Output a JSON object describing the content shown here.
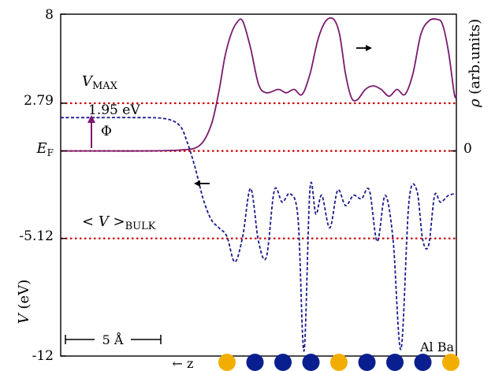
{
  "chart_data": {
    "type": "line",
    "title": "",
    "xlabel": "← z",
    "ylabel": "V (eV)",
    "ylabel_right": "ρ (arb.units)",
    "xlim": [
      0,
      100
    ],
    "ylim": [
      -12,
      8
    ],
    "y_ticks": [
      {
        "value": 8,
        "label": "8"
      },
      {
        "value": 2.79,
        "label": "2.79"
      },
      {
        "value": 0,
        "label": "E_F"
      },
      {
        "value": -5.12,
        "label": "-5.12"
      },
      {
        "value": -12,
        "label": "-12"
      }
    ],
    "y_right_ticks": [
      {
        "value": 0,
        "label": "0"
      }
    ],
    "grid": false,
    "reference_lines": [
      {
        "value": 2.79,
        "label": "V_MAX",
        "color": "#cc0000"
      },
      {
        "value": 0,
        "label": "",
        "color": "#cc0000"
      },
      {
        "value": -5.12,
        "label": "< V >_BULK",
        "color": "#cc0000"
      }
    ],
    "annotations": {
      "barrier_label": "1.95 eV",
      "work_function": "Φ",
      "scale_bar": "5 Å",
      "atom_labels": "Al Ba"
    },
    "series": [
      {
        "color": "#7a1a6e",
        "style": "solid",
        "axis": "right",
        "x": [
          0,
          10,
          20,
          30,
          35,
          38,
          40,
          41.5,
          43,
          44.5,
          46,
          48,
          50,
          52,
          55,
          57,
          59,
          61,
          63,
          65,
          67,
          69,
          70.5,
          72,
          73.5,
          75,
          77,
          79,
          81,
          83,
          85,
          87,
          89,
          91,
          93,
          95,
          96.5,
          98,
          99.5,
          100
        ],
        "y": [
          0,
          0,
          0,
          0.05,
          0.3,
          1.5,
          3.5,
          5.5,
          6.8,
          7.5,
          7.6,
          6.0,
          3.9,
          3.4,
          3.6,
          3.4,
          3.6,
          3.3,
          4.5,
          6.5,
          7.6,
          7.7,
          6.8,
          4.5,
          3.1,
          3.0,
          3.6,
          3.8,
          3.6,
          3.2,
          3.6,
          3.3,
          4.5,
          6.8,
          7.6,
          7.7,
          7.4,
          5.8,
          3.3,
          3.3
        ]
      },
      {
        "color": "#1a1a8c",
        "style": "dashed",
        "axis": "left",
        "x": [
          0,
          4,
          8,
          10,
          18,
          26,
          30,
          32,
          34,
          36,
          38,
          40,
          42,
          44,
          46,
          48,
          50,
          52,
          54,
          56,
          58,
          60,
          61.5,
          63,
          64.5,
          66,
          68,
          70,
          72,
          74,
          76,
          78,
          80,
          82,
          84,
          86,
          88,
          90,
          91.5,
          93,
          94.5,
          96,
          98,
          100
        ],
        "y": [
          1.95,
          1.95,
          1.95,
          1.95,
          1.95,
          1.9,
          1.5,
          0.5,
          -1.0,
          -2.8,
          -4.0,
          -4.5,
          -5.0,
          -6.5,
          -5.0,
          -2.2,
          -5.3,
          -6.2,
          -2.3,
          -3.0,
          -2.5,
          -4.0,
          -11.7,
          -2.2,
          -3.7,
          -2.6,
          -4.5,
          -2.3,
          -3.2,
          -2.6,
          -2.8,
          -2.3,
          -5.3,
          -2.6,
          -5.2,
          -11.6,
          -3.0,
          -2.3,
          -5.2,
          -5.5,
          -2.6,
          -3.0,
          -2.6,
          -2.5
        ]
      }
    ],
    "atom_colors": [
      "#f2ae00",
      "#0a1f8f",
      "#0a1f8f",
      "#0a1f8f",
      "#f2ae00",
      "#0a1f8f",
      "#0a1f8f",
      "#0a1f8f",
      "#f2ae00"
    ]
  }
}
